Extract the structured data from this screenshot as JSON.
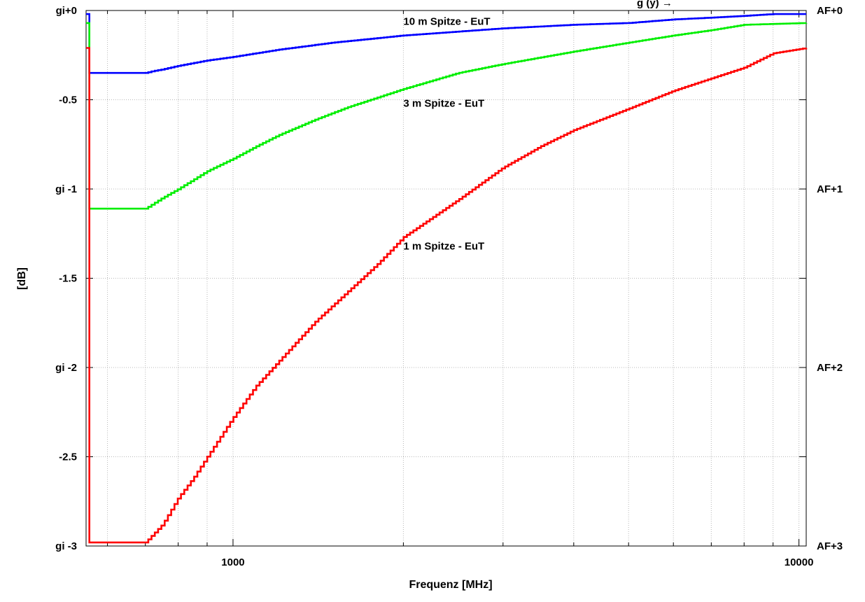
{
  "chart_data": {
    "type": "line",
    "title": "",
    "xlabel": "Frequenz [MHz]",
    "ylabel": "[dB]",
    "xscale": "log",
    "xlim": [
      550,
      10300
    ],
    "ylim": [
      -3,
      0
    ],
    "grid": true,
    "x_tick_labels": [
      "1000",
      "10000"
    ],
    "y_tick_labels": [
      "gi+0",
      "-0.5",
      "gi -1",
      "-1.5",
      "gi -2",
      "-2.5",
      "gi -3"
    ],
    "y2_tick_labels": [
      "AF+0",
      "AF+1",
      "AF+2",
      "AF+3"
    ],
    "series": [
      {
        "name": "10 m Spitze - EuT",
        "color": "#0000ff",
        "points": [
          [
            550,
            -0.35
          ],
          [
            700,
            -0.35
          ],
          [
            720,
            -0.34
          ],
          [
            750,
            -0.33
          ],
          [
            800,
            -0.31
          ],
          [
            900,
            -0.28
          ],
          [
            1000,
            -0.26
          ],
          [
            1200,
            -0.22
          ],
          [
            1500,
            -0.18
          ],
          [
            2000,
            -0.14
          ],
          [
            3000,
            -0.1
          ],
          [
            4000,
            -0.08
          ],
          [
            5000,
            -0.07
          ],
          [
            6000,
            -0.05
          ],
          [
            7000,
            -0.04
          ],
          [
            8000,
            -0.03
          ],
          [
            9000,
            -0.02
          ],
          [
            10300,
            -0.02
          ]
        ]
      },
      {
        "name": "3 m Spitze - EuT",
        "color": "#00ee00",
        "points": [
          [
            550,
            -1.11
          ],
          [
            700,
            -1.11
          ],
          [
            750,
            -1.05
          ],
          [
            800,
            -1.0
          ],
          [
            900,
            -0.9
          ],
          [
            1000,
            -0.83
          ],
          [
            1100,
            -0.76
          ],
          [
            1200,
            -0.7
          ],
          [
            1400,
            -0.61
          ],
          [
            1600,
            -0.54
          ],
          [
            2000,
            -0.44
          ],
          [
            2500,
            -0.35
          ],
          [
            3000,
            -0.3
          ],
          [
            4000,
            -0.23
          ],
          [
            5000,
            -0.18
          ],
          [
            6000,
            -0.14
          ],
          [
            7000,
            -0.11
          ],
          [
            8000,
            -0.08
          ],
          [
            10300,
            -0.07
          ]
        ]
      },
      {
        "name": "1 m Spitze - EuT",
        "color": "#ff0000",
        "points": [
          [
            550,
            -2.98
          ],
          [
            700,
            -2.98
          ],
          [
            750,
            -2.88
          ],
          [
            800,
            -2.73
          ],
          [
            850,
            -2.62
          ],
          [
            900,
            -2.5
          ],
          [
            1000,
            -2.28
          ],
          [
            1100,
            -2.1
          ],
          [
            1200,
            -1.97
          ],
          [
            1300,
            -1.85
          ],
          [
            1400,
            -1.74
          ],
          [
            1600,
            -1.57
          ],
          [
            1800,
            -1.42
          ],
          [
            2000,
            -1.27
          ],
          [
            2500,
            -1.06
          ],
          [
            3000,
            -0.88
          ],
          [
            3500,
            -0.76
          ],
          [
            4000,
            -0.67
          ],
          [
            5000,
            -0.55
          ],
          [
            6000,
            -0.45
          ],
          [
            7000,
            -0.38
          ],
          [
            8000,
            -0.32
          ],
          [
            9000,
            -0.24
          ],
          [
            10300,
            -0.21
          ]
        ]
      }
    ],
    "annotations": [
      {
        "text": "10 m Spitze - EuT",
        "series": 0,
        "x": 2000,
        "y": -0.06
      },
      {
        "text": "3 m Spitze - EuT",
        "series": 1,
        "x": 2000,
        "y": -0.52
      },
      {
        "text": "1 m Spitze - EuT",
        "series": 2,
        "x": 2000,
        "y": -1.32
      }
    ],
    "partial_title_fragment": "g (y) →"
  }
}
